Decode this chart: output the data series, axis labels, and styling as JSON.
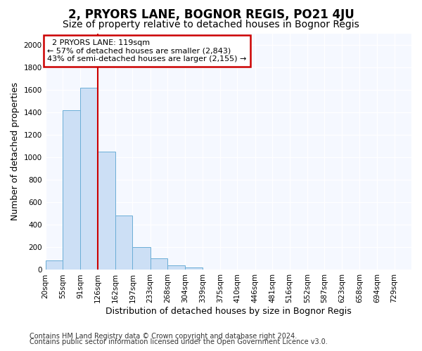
{
  "title": "2, PRYORS LANE, BOGNOR REGIS, PO21 4JU",
  "subtitle": "Size of property relative to detached houses in Bognor Regis",
  "xlabel": "Distribution of detached houses by size in Bognor Regis",
  "ylabel": "Number of detached properties",
  "bin_labels": [
    "20sqm",
    "55sqm",
    "91sqm",
    "126sqm",
    "162sqm",
    "197sqm",
    "233sqm",
    "268sqm",
    "304sqm",
    "339sqm",
    "375sqm",
    "410sqm",
    "446sqm",
    "481sqm",
    "516sqm",
    "552sqm",
    "587sqm",
    "623sqm",
    "658sqm",
    "694sqm",
    "729sqm"
  ],
  "bin_edges": [
    20,
    55,
    91,
    126,
    162,
    197,
    233,
    268,
    304,
    339,
    375,
    410,
    446,
    481,
    516,
    552,
    587,
    623,
    658,
    694,
    729
  ],
  "bar_values": [
    85,
    1420,
    1620,
    1050,
    480,
    200,
    100,
    40,
    20,
    0,
    0,
    0,
    0,
    0,
    0,
    0,
    0,
    0,
    0,
    0
  ],
  "bar_color": "#ccdff5",
  "bar_edge_color": "#6baed6",
  "vline_x": 126,
  "vline_color": "#cc0000",
  "property_label": "2 PRYORS LANE: 119sqm",
  "pct_smaller": 57,
  "n_smaller": 2843,
  "pct_larger": 43,
  "n_larger": 2155,
  "annotation_box_color": "#ffffff",
  "annotation_box_edge": "#cc0000",
  "ylim": [
    0,
    2100
  ],
  "yticks": [
    0,
    200,
    400,
    600,
    800,
    1000,
    1200,
    1400,
    1600,
    1800,
    2000
  ],
  "footer1": "Contains HM Land Registry data © Crown copyright and database right 2024.",
  "footer2": "Contains public sector information licensed under the Open Government Licence v3.0.",
  "bg_color": "#ffffff",
  "plot_bg_color": "#f5f8ff",
  "grid_color": "#ffffff",
  "title_fontsize": 12,
  "subtitle_fontsize": 10,
  "axis_label_fontsize": 9,
  "tick_fontsize": 7.5,
  "annot_fontsize": 8,
  "footer_fontsize": 7
}
